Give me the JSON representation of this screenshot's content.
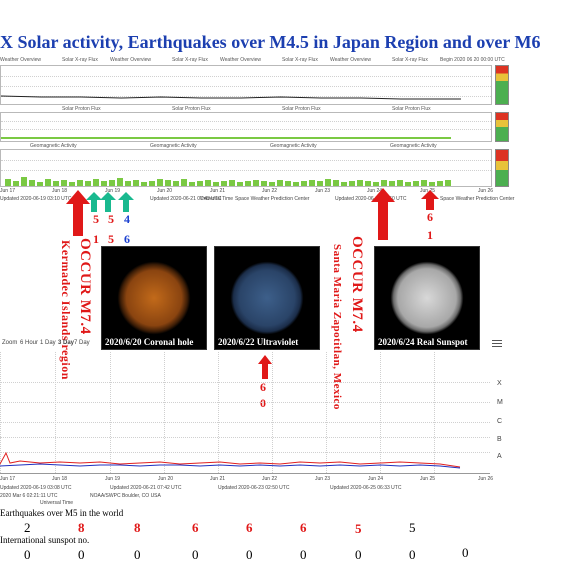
{
  "title": "X Solar activity, Earthquakes over M4.5 in Japan Region and over M6",
  "panel_header": {
    "left_label": "Weather Overview",
    "flux_label": "Solar X-ray Flux",
    "right_label": "Begin 2020 06 20 00:00 UTC"
  },
  "panel2_label": "Solar Proton Flux",
  "panel3_label": "Geomagnetic Activity",
  "top_axis": {
    "ticks": [
      "Jun 17",
      "Jun 18",
      "Jun 19",
      "Jun 20",
      "Jun 21",
      "Jun 22",
      "Jun 23",
      "Jun 24",
      "Jun 25",
      "Jun 26"
    ],
    "universal_time": "Universal Time",
    "updated": [
      "Updated 2020-06-19 03:10 UTC",
      "Updated 2020-06-21 07:43 UTC",
      "Space Weather Prediction Center",
      "Updated 2020-06-23 02:50 UTC",
      "Space Weather Prediction Center"
    ]
  },
  "annotations": {
    "left_vertical": "Kermadec Islands region",
    "occur_left": "OCCUR M7.4",
    "occur_right": "OCCUR M7.4",
    "right_vertical": "Santa Maria Zapotitlan, Mexico",
    "num_a_top": "5",
    "num_a_bottom": "1",
    "num_b_top": "5",
    "num_b_bottom": "5",
    "num_c_top": "4",
    "num_c_bottom": "6",
    "num_d_top": "6",
    "num_d_bottom": "1",
    "num_e_top": "6",
    "num_e_bottom": "0"
  },
  "photos": [
    {
      "caption": "2020/6/20 Coronal hole"
    },
    {
      "caption": "2020/6/22 Ultraviolet"
    },
    {
      "caption": "2020/6/24 Real Sunspot"
    }
  ],
  "xray_chart": {
    "zoom_label": "Zoom",
    "zoom_options": [
      "6 Hour",
      "1 Day",
      "3 Day",
      "7 Day"
    ],
    "menu_icon": "hamburger-menu-icon",
    "right_labels": [
      "X",
      "M",
      "C",
      "B",
      "A"
    ],
    "x_ticks": [
      "Jun 17",
      "Jun 18",
      "Jun 19",
      "Jun 20",
      "Jun 21",
      "Jun 22",
      "Jun 23",
      "Jun 24",
      "Jun 25",
      "Jun 26"
    ],
    "footer_left": "2020 Mar 6 02:21:11 UTC",
    "footer_ut": "Universal Time",
    "footer_credit": "NOAA/SWPC Boulder, CO USA",
    "updated": [
      "Updated 2020-06-19 03:08 UTC",
      "Updated 2020-06-21 07:42 UTC",
      "Updated 2020-06-23 02:50 UTC",
      "Updated 2020-06-25 06:33 UTC"
    ]
  },
  "earthquake_label": "Earthquakes over M5 in the world",
  "earthquake_counts": [
    "2",
    "8",
    "8",
    "6",
    "6",
    "6",
    "5",
    "5"
  ],
  "sunspot_label": "International sunspot no.",
  "sunspot_counts": [
    "0",
    "0",
    "0",
    "0",
    "0",
    "0",
    "0",
    "0",
    "0"
  ],
  "colors": {
    "title": "#1c3fb0",
    "annotation_red": "#e01818",
    "annotation_blue": "#1a3fd0",
    "arrow_green": "#19b98f",
    "series_red": "#e02020",
    "series_blue": "#2030c0"
  }
}
